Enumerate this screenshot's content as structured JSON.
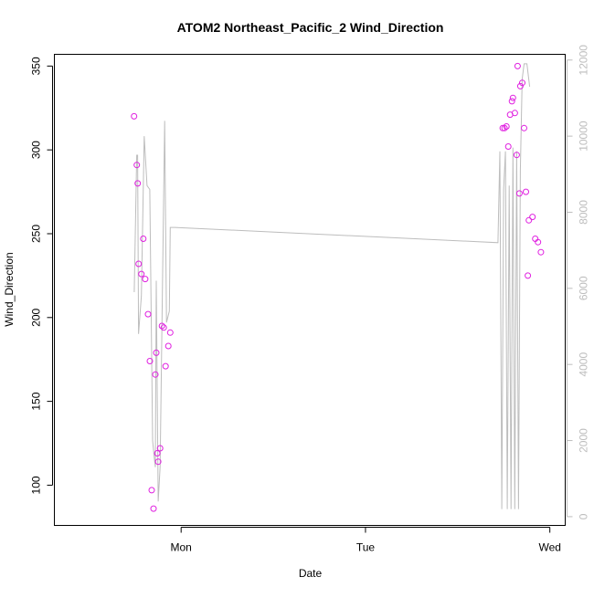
{
  "colors": {
    "points": "#e020e0",
    "line": "#bdbdbd",
    "axis_left": "#000000",
    "axis_right": "#bdbdbd",
    "background": "#ffffff"
  },
  "chart_data": {
    "type": "scatter",
    "title": "ATOM2 Northeast_Pacific_2 Wind_Direction",
    "xlabel": "Date",
    "ylabel": "Wind_Direction",
    "x_unit": "hours since Sunday 00:00",
    "xlim": [
      -16.5,
      50
    ],
    "x_ticks": [
      {
        "value": 0,
        "label": "Mon"
      },
      {
        "value": 24,
        "label": "Tue"
      },
      {
        "value": 48,
        "label": "Wed"
      }
    ],
    "ylim": [
      76,
      357
    ],
    "y_ticks": [
      100,
      150,
      200,
      250,
      300,
      350
    ],
    "y2lim": [
      -230,
      12150
    ],
    "y2_ticks": [
      0,
      2000,
      4000,
      6000,
      8000,
      10000,
      12000
    ],
    "grid": false,
    "legend": "none",
    "series": [
      {
        "type": "scatter",
        "axis": "left",
        "points": [
          [
            -6.13,
            320
          ],
          [
            -5.77,
            291
          ],
          [
            -5.65,
            280
          ],
          [
            -5.53,
            232
          ],
          [
            -5.17,
            226
          ],
          [
            -4.92,
            247
          ],
          [
            -4.68,
            223
          ],
          [
            -4.31,
            202
          ],
          [
            -4.07,
            174
          ],
          [
            -3.83,
            97
          ],
          [
            -3.59,
            86
          ],
          [
            -3.35,
            166
          ],
          [
            -3.23,
            179
          ],
          [
            -3.1,
            119
          ],
          [
            -2.98,
            114
          ],
          [
            -2.74,
            122
          ],
          [
            -2.5,
            195
          ],
          [
            -2.26,
            194
          ],
          [
            -2.02,
            171
          ],
          [
            -1.66,
            183
          ],
          [
            -1.41,
            191
          ],
          [
            41.86,
            313
          ],
          [
            42.1,
            313
          ],
          [
            42.35,
            314
          ],
          [
            42.59,
            302
          ],
          [
            42.83,
            321
          ],
          [
            43.07,
            329
          ],
          [
            43.19,
            331
          ],
          [
            43.44,
            322
          ],
          [
            43.68,
            297
          ],
          [
            43.8,
            350
          ],
          [
            44.04,
            274
          ],
          [
            44.16,
            338
          ],
          [
            44.41,
            340
          ],
          [
            44.65,
            313
          ],
          [
            44.89,
            275
          ],
          [
            45.13,
            225
          ],
          [
            45.26,
            258
          ],
          [
            45.74,
            260
          ],
          [
            46.1,
            247
          ],
          [
            46.46,
            245
          ],
          [
            46.83,
            239
          ]
        ]
      },
      {
        "type": "line",
        "axis": "right",
        "points": [
          [
            -6.1,
            5900
          ],
          [
            -5.78,
            9500
          ],
          [
            -5.66,
            9500
          ],
          [
            -5.54,
            4800
          ],
          [
            -5.17,
            5800
          ],
          [
            -4.81,
            10000
          ],
          [
            -4.44,
            8700
          ],
          [
            -4.08,
            8600
          ],
          [
            -3.71,
            2000
          ],
          [
            -3.47,
            1500
          ],
          [
            -3.35,
            1300
          ],
          [
            -3.23,
            6200
          ],
          [
            -2.98,
            400
          ],
          [
            -2.74,
            1300
          ],
          [
            -2.5,
            5000
          ],
          [
            -2.14,
            10400
          ],
          [
            -1.9,
            5100
          ],
          [
            -1.53,
            5400
          ],
          [
            -1.41,
            7600
          ],
          [
            -0.81,
            7600
          ],
          [
            41.25,
            7200
          ],
          [
            41.49,
            9600
          ],
          [
            41.74,
            200
          ],
          [
            41.98,
            8600
          ],
          [
            42.22,
            9600
          ],
          [
            42.46,
            200
          ],
          [
            42.71,
            8700
          ],
          [
            42.95,
            200
          ],
          [
            43.19,
            9700
          ],
          [
            43.43,
            200
          ],
          [
            43.68,
            9600
          ],
          [
            43.92,
            200
          ],
          [
            44.16,
            9100
          ],
          [
            44.4,
            11500
          ],
          [
            44.65,
            11900
          ],
          [
            45.01,
            11900
          ],
          [
            45.37,
            11300
          ]
        ]
      }
    ]
  }
}
